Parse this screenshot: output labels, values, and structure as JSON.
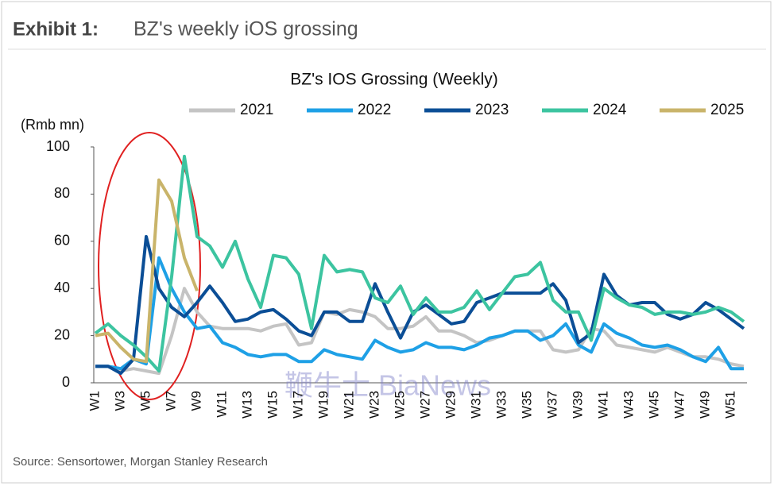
{
  "header": {
    "label": "Exhibit 1:",
    "title": "BZ's weekly iOS grossing"
  },
  "chart_data": {
    "type": "line",
    "title": "BZ's IOS Grossing (Weekly)",
    "y_label": "(Rmb mn)",
    "categories": [
      "W1",
      null,
      "W3",
      null,
      "W5",
      null,
      "W7",
      null,
      "W9",
      null,
      "W11",
      null,
      "W13",
      null,
      "W15",
      null,
      "W17",
      null,
      "W19",
      null,
      "W21",
      null,
      "W23",
      null,
      "W25",
      null,
      "W27",
      null,
      "W29",
      null,
      "W31",
      null,
      "W33",
      null,
      "W35",
      null,
      "W37",
      null,
      "W39",
      null,
      "W41",
      null,
      "W43",
      null,
      "W45",
      null,
      "W47",
      null,
      "W49",
      null,
      "W51",
      null
    ],
    "series": [
      {
        "name": "2021",
        "color": "#c4c4c4",
        "values": [
          7,
          7,
          5,
          6,
          5,
          4,
          20,
          40,
          30,
          24,
          23,
          23,
          23,
          22,
          24,
          25,
          16,
          17,
          30,
          29,
          31,
          30,
          28,
          23,
          23,
          24,
          28,
          22,
          22,
          20,
          17,
          18,
          20,
          22,
          22,
          22,
          14,
          13,
          14,
          23,
          22,
          16,
          15,
          14,
          13,
          15,
          13,
          11,
          11,
          10,
          8,
          7
        ]
      },
      {
        "name": "2022",
        "color": "#1ea0e6",
        "values": [
          7,
          7,
          6,
          10,
          8,
          53,
          40,
          30,
          23,
          24,
          17,
          15,
          12,
          11,
          12,
          12,
          9,
          9,
          14,
          12,
          11,
          10,
          18,
          15,
          13,
          14,
          17,
          15,
          15,
          14,
          16,
          19,
          20,
          22,
          22,
          18,
          20,
          25,
          16,
          13,
          25,
          21,
          19,
          16,
          15,
          16,
          14,
          11,
          9,
          15,
          6,
          6
        ]
      },
      {
        "name": "2023",
        "color": "#0b4e96",
        "values": [
          7,
          7,
          4,
          10,
          62,
          40,
          32,
          28,
          34,
          41,
          34,
          26,
          27,
          30,
          31,
          27,
          22,
          20,
          30,
          30,
          26,
          26,
          42,
          30,
          19,
          30,
          33,
          29,
          25,
          26,
          34,
          36,
          38,
          38,
          38,
          38,
          42,
          35,
          17,
          21,
          46,
          37,
          33,
          34,
          34,
          29,
          27,
          29,
          34,
          31,
          27,
          23
        ]
      },
      {
        "name": "2024",
        "color": "#3cc4a0",
        "values": [
          21,
          25,
          20,
          16,
          11,
          5,
          45,
          96,
          62,
          58,
          49,
          60,
          44,
          32,
          54,
          53,
          46,
          23,
          54,
          47,
          48,
          47,
          36,
          34,
          41,
          29,
          36,
          30,
          30,
          32,
          39,
          31,
          38,
          45,
          46,
          51,
          35,
          30,
          30,
          18,
          40,
          36,
          33,
          32,
          29,
          30,
          30,
          29,
          30,
          32,
          30,
          26
        ]
      },
      {
        "name": "2025",
        "color": "#c9b46a",
        "values": [
          20,
          21,
          15,
          10,
          9,
          86,
          77,
          53,
          39,
          null,
          null,
          null,
          null,
          null,
          null,
          null,
          null,
          null,
          null,
          null,
          null,
          null,
          null,
          null,
          null,
          null,
          null,
          null,
          null,
          null,
          null,
          null,
          null,
          null,
          null,
          null,
          null,
          null,
          null,
          null,
          null,
          null,
          null,
          null,
          null,
          null,
          null,
          null,
          null,
          null,
          null,
          null
        ]
      }
    ],
    "ylim": [
      0,
      100
    ],
    "yticks": [
      0,
      20,
      40,
      60,
      80,
      100
    ],
    "grid": false,
    "legend": "top"
  },
  "watermark": "鞭牛士 BiaNews",
  "source": "Source: Sensortower, Morgan Stanley Research"
}
